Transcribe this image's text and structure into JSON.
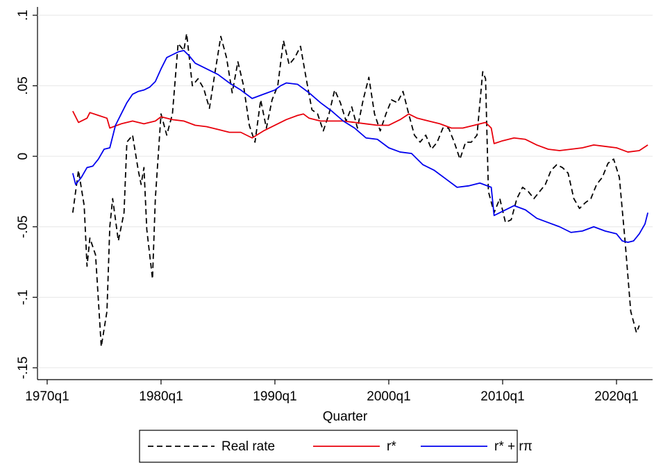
{
  "chart_data": {
    "type": "line",
    "x_label": "Quarter",
    "xlim": [
      1969.15,
      2023.17
    ],
    "xticks": [
      {
        "value": 1970,
        "label": "1970q1"
      },
      {
        "value": 1980,
        "label": "1980q1"
      },
      {
        "value": 1990,
        "label": "1990q1"
      },
      {
        "value": 2000,
        "label": "2000q1"
      },
      {
        "value": 2010,
        "label": "2010q1"
      },
      {
        "value": 2020,
        "label": "2020q1"
      }
    ],
    "ylim": [
      -0.1584,
      0.1059
    ],
    "yticks": [
      {
        "value": -0.15,
        "label": "-.15"
      },
      {
        "value": -0.1,
        "label": "-.1"
      },
      {
        "value": -0.05,
        "label": "-.05"
      },
      0,
      {
        "value": 0.05,
        "label": ".05"
      },
      {
        "value": 0.1,
        "label": ".1"
      }
    ],
    "grid": true,
    "legend": "bottom",
    "series": [
      {
        "name": "Real rate",
        "color": "#000000",
        "dash": true,
        "x": [
          1972.25,
          1972.75,
          1973.25,
          1973.5,
          1973.75,
          1974.25,
          1974.75,
          1975.25,
          1975.5,
          1975.75,
          1976.25,
          1976.75,
          1977,
          1977.5,
          1978,
          1978.25,
          1978.5,
          1978.75,
          1979.25,
          1979.5,
          1980,
          1980.5,
          1981,
          1981.5,
          1982,
          1982.25,
          1982.75,
          1983.25,
          1983.75,
          1984.25,
          1984.75,
          1985.25,
          1985.75,
          1986.25,
          1986.75,
          1987.25,
          1987.75,
          1988.25,
          1988.75,
          1989.25,
          1989.75,
          1990.25,
          1990.75,
          1991.25,
          1991.75,
          1992.25,
          1992.75,
          1993.25,
          1993.75,
          1994.25,
          1994.75,
          1995.25,
          1995.75,
          1996.25,
          1996.75,
          1997.25,
          1997.75,
          1998.25,
          1998.75,
          1999.25,
          1999.75,
          2000.25,
          2000.75,
          2001.25,
          2001.75,
          2002.25,
          2002.75,
          2003.25,
          2003.75,
          2004.25,
          2004.75,
          2005.25,
          2005.75,
          2006.25,
          2006.75,
          2007.25,
          2007.75,
          2008.25,
          2008.5,
          2008.75,
          2009.25,
          2009.75,
          2010.25,
          2010.75,
          2011.25,
          2011.75,
          2012.25,
          2012.75,
          2013.25,
          2013.75,
          2014.25,
          2014.75,
          2015.25,
          2015.75,
          2016.25,
          2016.75,
          2017.25,
          2017.75,
          2018.25,
          2018.75,
          2019.25,
          2019.75,
          2020.25,
          2020.75,
          2021.25,
          2021.75,
          2022
        ],
        "values": [
          -0.04,
          -0.01,
          -0.035,
          -0.078,
          -0.058,
          -0.07,
          -0.135,
          -0.11,
          -0.05,
          -0.03,
          -0.06,
          -0.04,
          0.01,
          0.015,
          -0.01,
          -0.02,
          -0.008,
          -0.052,
          -0.087,
          -0.03,
          0.03,
          0.015,
          0.03,
          0.08,
          0.075,
          0.087,
          0.05,
          0.055,
          0.048,
          0.034,
          0.06,
          0.085,
          0.07,
          0.045,
          0.067,
          0.05,
          0.022,
          0.01,
          0.04,
          0.02,
          0.04,
          0.05,
          0.082,
          0.065,
          0.07,
          0.078,
          0.055,
          0.033,
          0.03,
          0.018,
          0.03,
          0.047,
          0.038,
          0.025,
          0.035,
          0.02,
          0.04,
          0.056,
          0.03,
          0.018,
          0.03,
          0.04,
          0.038,
          0.046,
          0.03,
          0.015,
          0.01,
          0.015,
          0.005,
          0.01,
          0.02,
          0.02,
          0.01,
          -0.002,
          0.01,
          0.01,
          0.015,
          0.06,
          0.055,
          -0.025,
          -0.04,
          -0.03,
          -0.047,
          -0.045,
          -0.03,
          -0.022,
          -0.025,
          -0.03,
          -0.025,
          -0.02,
          -0.01,
          -0.006,
          -0.008,
          -0.012,
          -0.03,
          -0.037,
          -0.033,
          -0.03,
          -0.02,
          -0.015,
          -0.005,
          -0.002,
          -0.015,
          -0.06,
          -0.11,
          -0.125,
          -0.12
        ]
      },
      {
        "name": "r*",
        "color": "#e8000b",
        "dash": false,
        "x": [
          1972.25,
          1972.75,
          1973.5,
          1973.75,
          1974.5,
          1975.25,
          1975.5,
          1976.5,
          1977.5,
          1978.5,
          1979.5,
          1980,
          1981,
          1982,
          1983,
          1984,
          1985,
          1986,
          1987,
          1988,
          1989,
          1990,
          1991,
          1992,
          1992.5,
          1993,
          1994,
          1995,
          1996,
          1997,
          1998,
          1999,
          2000,
          2001,
          2001.75,
          2002.5,
          2003.5,
          2004.5,
          2005.5,
          2006.5,
          2007.5,
          2008.5,
          2009,
          2009.25,
          2010,
          2011,
          2012,
          2013,
          2014,
          2015,
          2016,
          2017,
          2018,
          2019,
          2020,
          2021,
          2022,
          2022.75
        ],
        "values": [
          0.032,
          0.024,
          0.027,
          0.031,
          0.029,
          0.027,
          0.02,
          0.023,
          0.025,
          0.023,
          0.025,
          0.028,
          0.026,
          0.025,
          0.022,
          0.021,
          0.019,
          0.017,
          0.017,
          0.013,
          0.018,
          0.022,
          0.026,
          0.029,
          0.03,
          0.027,
          0.025,
          0.025,
          0.025,
          0.024,
          0.023,
          0.022,
          0.022,
          0.026,
          0.03,
          0.027,
          0.025,
          0.023,
          0.02,
          0.02,
          0.022,
          0.024,
          0.02,
          0.009,
          0.011,
          0.013,
          0.012,
          0.008,
          0.005,
          0.004,
          0.005,
          0.006,
          0.008,
          0.007,
          0.006,
          0.003,
          0.004,
          0.008
        ]
      },
      {
        "name": "r* + rπ",
        "color": "#0000ee",
        "dash": false,
        "x": [
          1972.25,
          1972.5,
          1973,
          1973.5,
          1974,
          1974.5,
          1975,
          1975.5,
          1976,
          1976.5,
          1977,
          1977.5,
          1978,
          1978.5,
          1979,
          1979.5,
          1980,
          1980.5,
          1981,
          1981.5,
          1982,
          1982.5,
          1983,
          1984,
          1985,
          1986,
          1987,
          1988,
          1989,
          1990,
          1990.5,
          1991,
          1992,
          1993,
          1994,
          1995,
          1996,
          1997,
          1998,
          1999,
          2000,
          2001,
          2002,
          2003,
          2004,
          2005,
          2006,
          2007,
          2008,
          2009,
          2009.25,
          2010,
          2011,
          2012,
          2013,
          2014,
          2015,
          2016,
          2017,
          2018,
          2019,
          2020,
          2020.5,
          2021,
          2021.5,
          2022,
          2022.5,
          2022.75
        ],
        "values": [
          -0.012,
          -0.02,
          -0.015,
          -0.008,
          -0.007,
          -0.002,
          0.005,
          0.006,
          0.022,
          0.03,
          0.038,
          0.044,
          0.046,
          0.047,
          0.049,
          0.053,
          0.062,
          0.07,
          0.072,
          0.074,
          0.075,
          0.071,
          0.066,
          0.062,
          0.058,
          0.052,
          0.047,
          0.041,
          0.044,
          0.047,
          0.05,
          0.052,
          0.051,
          0.045,
          0.038,
          0.032,
          0.025,
          0.02,
          0.013,
          0.012,
          0.006,
          0.003,
          0.002,
          -0.006,
          -0.01,
          -0.016,
          -0.022,
          -0.021,
          -0.019,
          -0.022,
          -0.042,
          -0.039,
          -0.035,
          -0.038,
          -0.044,
          -0.047,
          -0.05,
          -0.054,
          -0.053,
          -0.05,
          -0.053,
          -0.055,
          -0.06,
          -0.061,
          -0.06,
          -0.055,
          -0.048,
          -0.04
        ]
      }
    ]
  }
}
